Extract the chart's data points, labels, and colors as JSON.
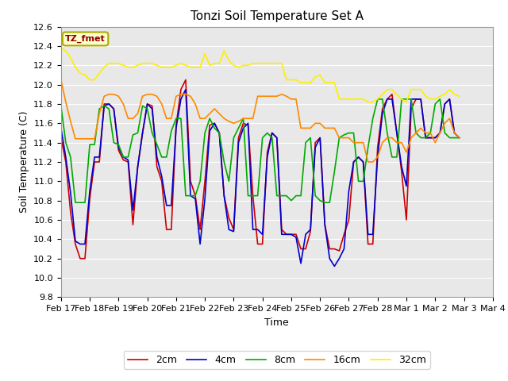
{
  "title": "Tonzi Soil Temperature Set A",
  "xlabel": "Time",
  "ylabel": "Soil Temperature (C)",
  "ylim": [
    9.8,
    12.6
  ],
  "legend_label": "TZ_fmet",
  "series_labels": [
    "2cm",
    "4cm",
    "8cm",
    "16cm",
    "32cm"
  ],
  "series_colors": [
    "#cc0000",
    "#0000cc",
    "#00aa00",
    "#ff8800",
    "#ffee00"
  ],
  "line_width": 1.2,
  "xtick_labels": [
    "Feb 17",
    "Feb 18",
    "Feb 19",
    "Feb 20",
    "Feb 21",
    "Feb 22",
    "Feb 23",
    "Feb 24",
    "Feb 25",
    "Feb 26",
    "Feb 27",
    "Feb 28",
    "Mar 1",
    "Mar 2",
    "Mar 3",
    "Mar 4"
  ],
  "bg_color": "#ffffff",
  "plot_bg_color": "#e8e8e8",
  "grid_color": "#ffffff",
  "data_2cm": [
    11.45,
    11.2,
    10.68,
    10.35,
    10.2,
    10.2,
    10.82,
    11.2,
    11.2,
    11.8,
    11.8,
    11.75,
    11.32,
    11.22,
    11.2,
    10.55,
    11.15,
    11.5,
    11.8,
    11.78,
    11.15,
    11.0,
    10.5,
    10.5,
    11.58,
    11.95,
    12.05,
    11.0,
    10.85,
    10.5,
    11.0,
    11.58,
    11.6,
    11.5,
    10.85,
    10.62,
    10.5,
    11.45,
    11.6,
    11.58,
    10.85,
    10.35,
    10.35,
    11.3,
    11.5,
    11.45,
    10.5,
    10.45,
    10.45,
    10.45,
    10.3,
    10.3,
    10.48,
    11.4,
    11.45,
    10.55,
    10.3,
    10.3,
    10.28,
    10.45,
    10.6,
    11.2,
    11.25,
    11.2,
    10.35,
    10.35,
    11.35,
    11.75,
    11.85,
    11.9,
    11.5,
    11.1,
    10.6,
    11.75,
    11.85,
    11.85,
    11.45,
    11.45,
    11.45,
    11.5,
    11.8,
    11.85,
    11.5,
    11.45
  ],
  "data_4cm": [
    11.55,
    11.25,
    10.88,
    10.38,
    10.35,
    10.35,
    10.9,
    11.25,
    11.25,
    11.78,
    11.8,
    11.75,
    11.35,
    11.25,
    11.22,
    10.7,
    11.15,
    11.5,
    11.8,
    11.75,
    11.25,
    11.05,
    10.75,
    10.75,
    11.55,
    11.85,
    11.95,
    10.85,
    10.82,
    10.35,
    10.82,
    11.52,
    11.6,
    11.5,
    10.85,
    10.5,
    10.48,
    11.4,
    11.55,
    11.6,
    10.5,
    10.5,
    10.45,
    11.25,
    11.5,
    11.45,
    10.45,
    10.45,
    10.45,
    10.42,
    10.15,
    10.45,
    10.5,
    11.35,
    11.45,
    10.55,
    10.2,
    10.12,
    10.2,
    10.3,
    10.9,
    11.2,
    11.25,
    11.2,
    10.45,
    10.45,
    11.25,
    11.7,
    11.85,
    11.85,
    11.5,
    11.15,
    10.95,
    11.85,
    11.85,
    11.85,
    11.45,
    11.45,
    11.45,
    11.5,
    11.8,
    11.85,
    11.5,
    11.45
  ],
  "data_8cm": [
    11.78,
    11.4,
    11.25,
    10.78,
    10.78,
    10.78,
    11.38,
    11.38,
    11.75,
    11.78,
    11.75,
    11.4,
    11.38,
    11.25,
    11.25,
    11.48,
    11.5,
    11.78,
    11.75,
    11.5,
    11.38,
    11.25,
    11.25,
    11.52,
    11.65,
    11.65,
    10.85,
    10.85,
    10.85,
    11.0,
    11.5,
    11.65,
    11.55,
    11.5,
    11.2,
    11.0,
    11.45,
    11.55,
    11.65,
    10.85,
    10.85,
    10.85,
    11.45,
    11.5,
    11.45,
    10.85,
    10.85,
    10.85,
    10.8,
    10.85,
    10.85,
    11.4,
    11.45,
    10.85,
    10.8,
    10.78,
    10.78,
    11.1,
    11.45,
    11.48,
    11.5,
    11.5,
    11.0,
    11.0,
    11.35,
    11.65,
    11.85,
    11.85,
    11.5,
    11.25,
    11.25,
    11.85,
    11.85,
    11.85,
    11.5,
    11.45,
    11.45,
    11.5,
    11.8,
    11.85,
    11.5,
    11.45,
    11.45,
    11.45
  ],
  "data_16cm": [
    12.05,
    11.82,
    11.62,
    11.44,
    11.44,
    11.44,
    11.44,
    11.44,
    11.7,
    11.88,
    11.9,
    11.9,
    11.88,
    11.8,
    11.65,
    11.65,
    11.7,
    11.88,
    11.9,
    11.9,
    11.88,
    11.8,
    11.65,
    11.65,
    11.88,
    11.9,
    11.9,
    11.88,
    11.8,
    11.65,
    11.65,
    11.7,
    11.75,
    11.7,
    11.65,
    11.62,
    11.6,
    11.62,
    11.65,
    11.65,
    11.65,
    11.88,
    11.88,
    11.88,
    11.88,
    11.88,
    11.9,
    11.88,
    11.85,
    11.85,
    11.55,
    11.55,
    11.55,
    11.6,
    11.6,
    11.55,
    11.55,
    11.55,
    11.45,
    11.45,
    11.45,
    11.4,
    11.4,
    11.4,
    11.2,
    11.2,
    11.25,
    11.4,
    11.45,
    11.45,
    11.4,
    11.4,
    11.3,
    11.45,
    11.5,
    11.55,
    11.5,
    11.5,
    11.4,
    11.5,
    11.6,
    11.65,
    11.5,
    11.45
  ],
  "data_32cm": [
    12.38,
    12.35,
    12.28,
    12.18,
    12.12,
    12.1,
    12.05,
    12.05,
    12.12,
    12.18,
    12.22,
    12.22,
    12.22,
    12.2,
    12.18,
    12.18,
    12.2,
    12.22,
    12.22,
    12.22,
    12.2,
    12.18,
    12.18,
    12.18,
    12.2,
    12.22,
    12.2,
    12.18,
    12.18,
    12.18,
    12.32,
    12.2,
    12.22,
    12.22,
    12.35,
    12.25,
    12.2,
    12.18,
    12.2,
    12.2,
    12.22,
    12.22,
    12.22,
    12.22,
    12.22,
    12.22,
    12.22,
    12.05,
    12.05,
    12.05,
    12.02,
    12.02,
    12.02,
    12.08,
    12.1,
    12.02,
    12.02,
    12.02,
    11.85,
    11.85,
    11.85,
    11.85,
    11.85,
    11.85,
    11.82,
    11.82,
    11.85,
    11.9,
    11.95,
    11.95,
    11.9,
    11.85,
    11.82,
    11.95,
    11.95,
    11.95,
    11.88,
    11.85,
    11.85,
    11.88,
    11.9,
    11.95,
    11.9,
    11.88
  ],
  "xtick_positions": [
    0,
    6,
    12,
    18,
    24,
    30,
    36,
    42,
    48,
    54,
    60,
    66,
    72,
    78,
    84,
    90
  ],
  "yticks": [
    9.8,
    10.0,
    10.2,
    10.4,
    10.6,
    10.8,
    11.0,
    11.2,
    11.4,
    11.6,
    11.8,
    12.0,
    12.2,
    12.4,
    12.6
  ]
}
